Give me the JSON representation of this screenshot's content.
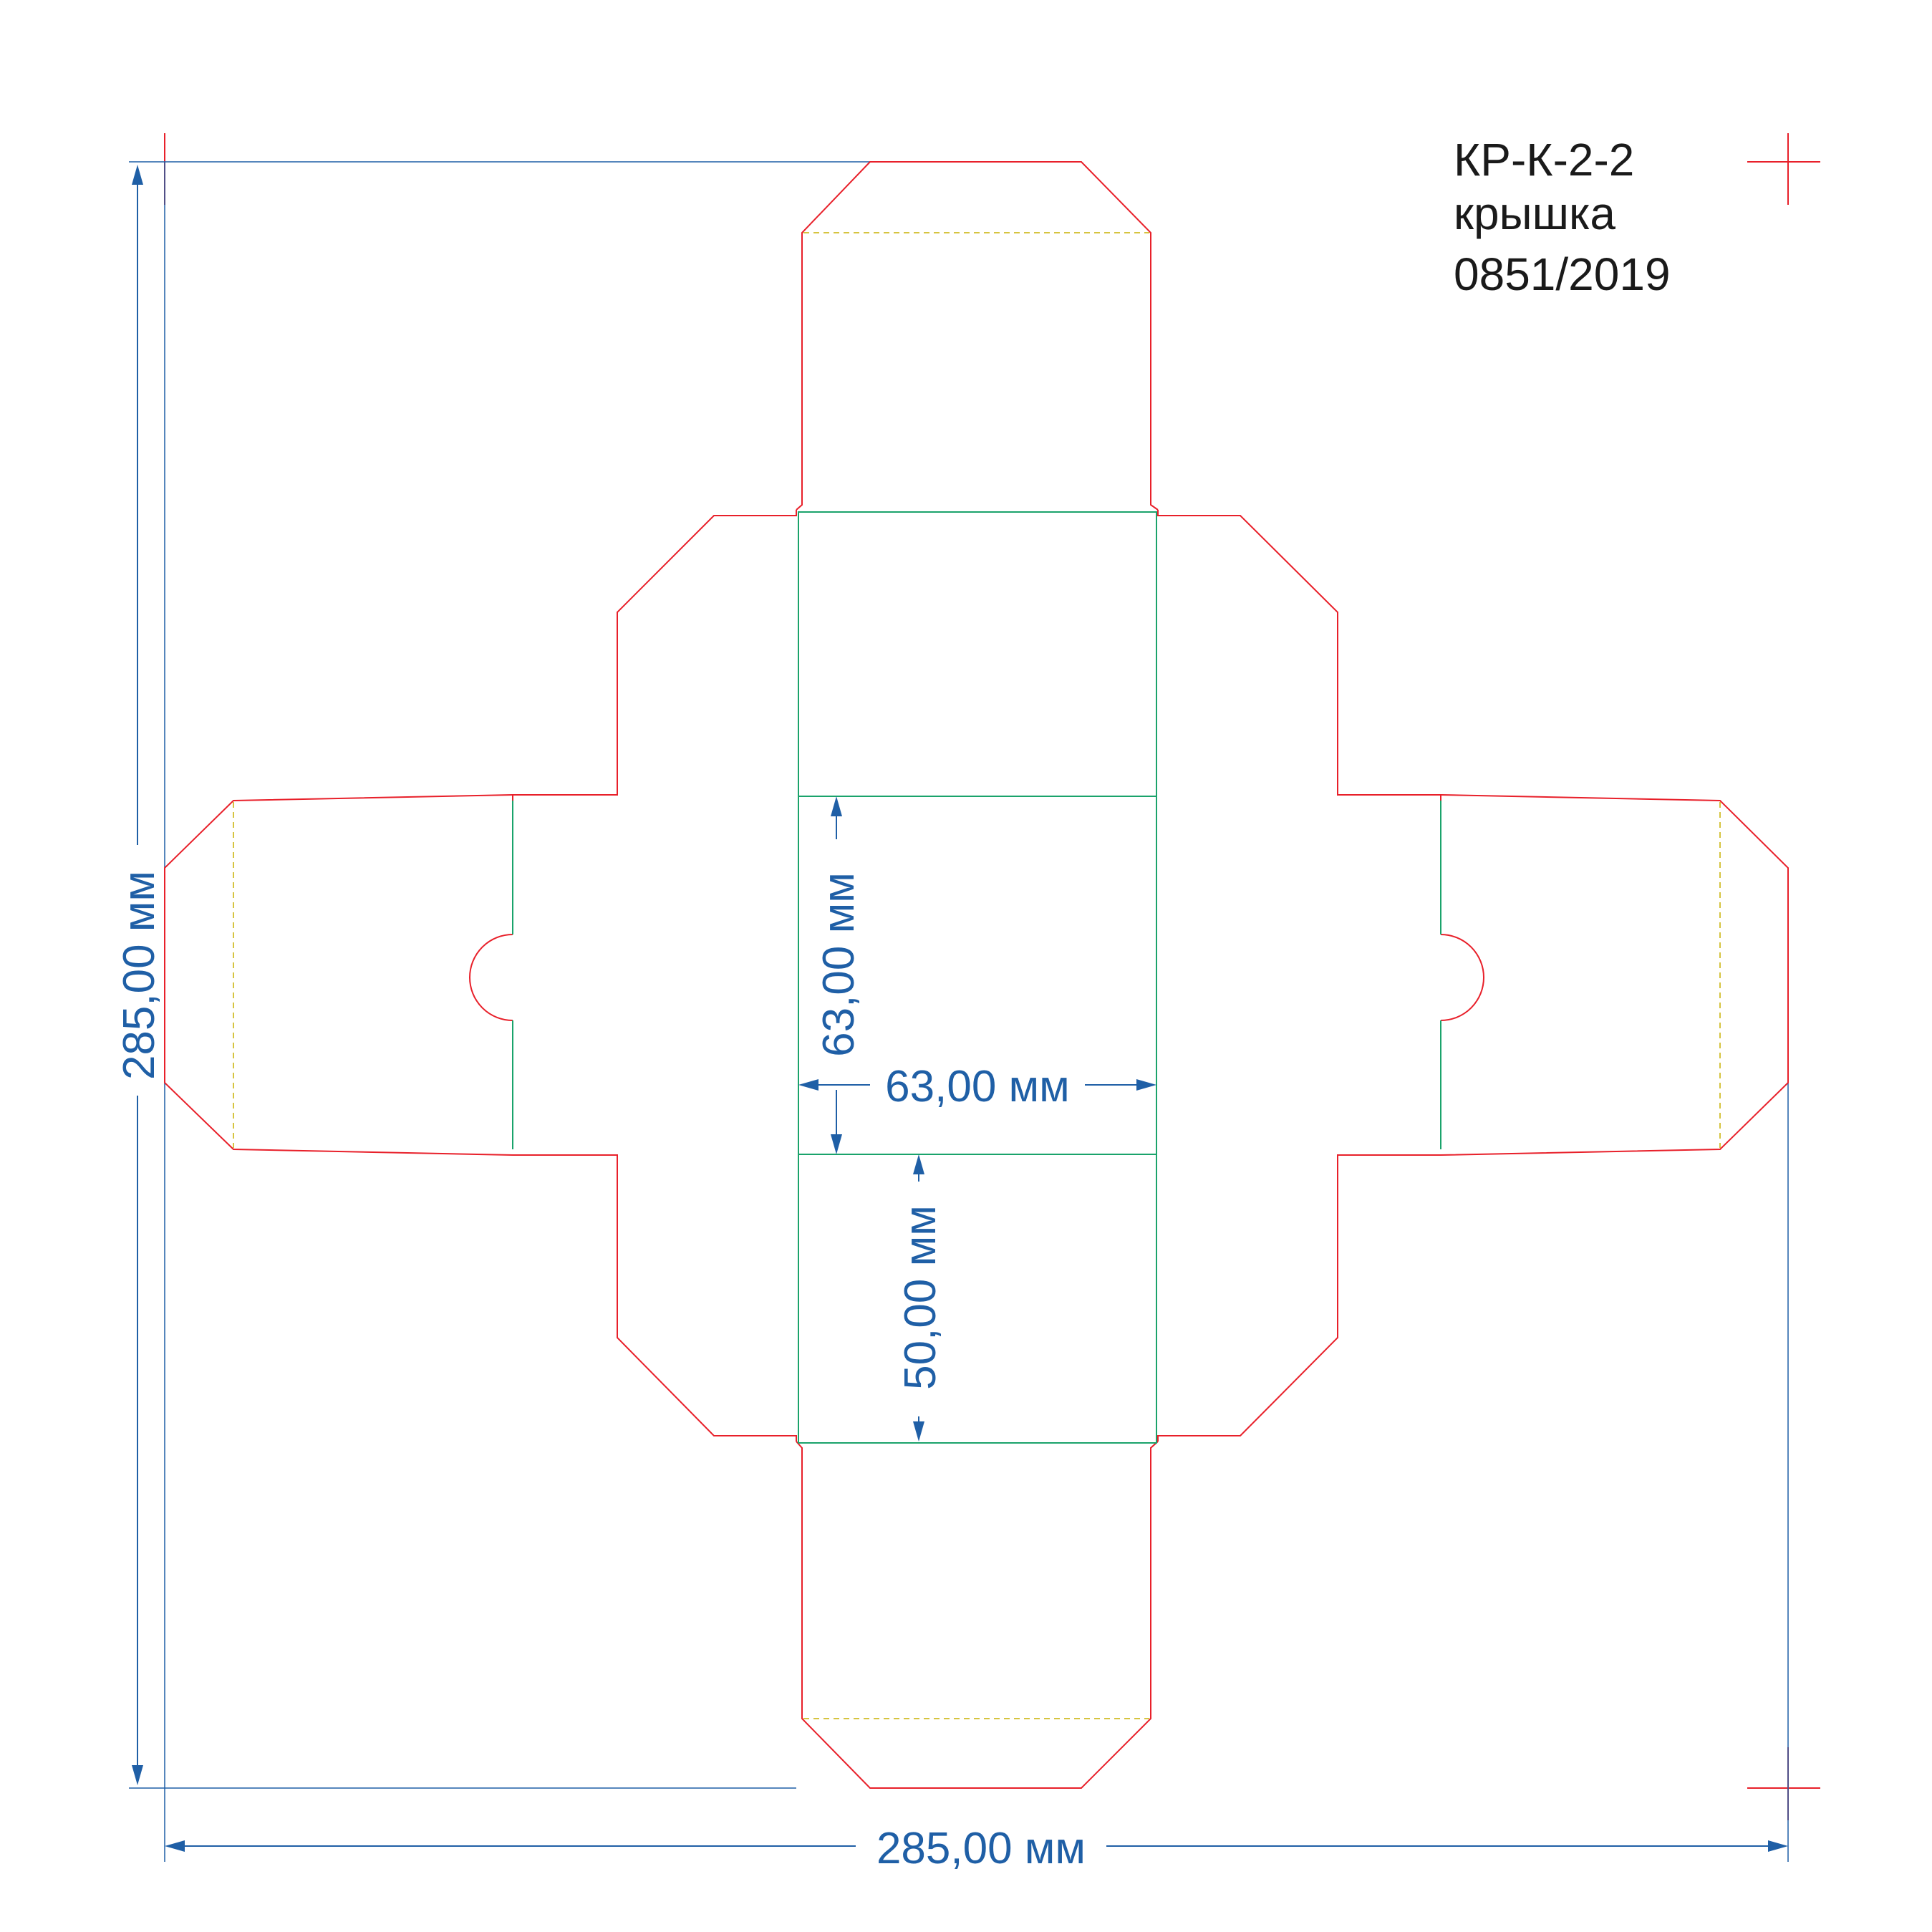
{
  "title": {
    "code": "КР-К-2-2",
    "name": "крышка",
    "number": "0851/2019"
  },
  "dimensions": {
    "total_width": "285,00 мм",
    "total_height": "285,00 мм",
    "center_width": "63,00 мм",
    "center_height": "63,00 мм",
    "side_height": "50,00 мм"
  },
  "colors": {
    "cut_line": "#e8202a",
    "crease_line": "#1aa36b",
    "perforation": "#c9b000",
    "dimension": "#1f5fa6",
    "registration": "#e8202a"
  }
}
